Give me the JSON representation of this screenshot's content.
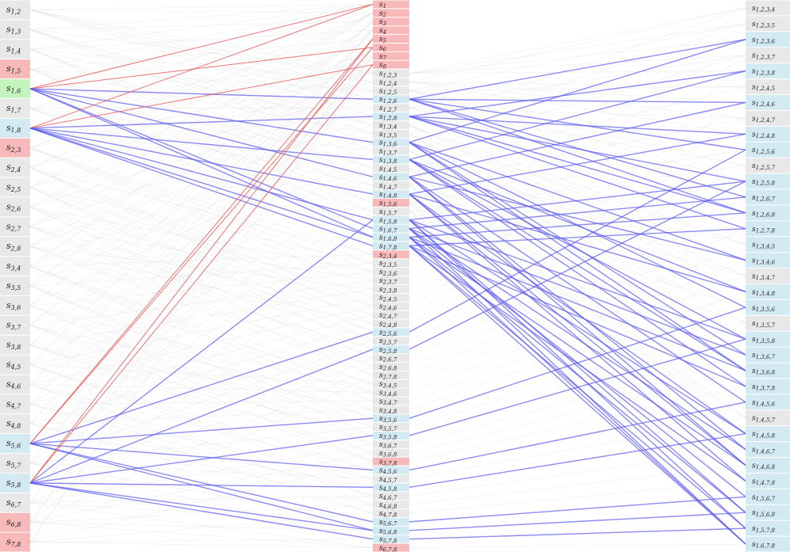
{
  "left_column": {
    "nodes": [
      {
        "label": "s",
        "subscript": "1,2",
        "color": "#e8e8e8"
      },
      {
        "label": "s",
        "subscript": "1,3",
        "color": "#e8e8e8"
      },
      {
        "label": "s",
        "subscript": "1,4",
        "color": "#e8e8e8"
      },
      {
        "label": "s",
        "subscript": "1,5",
        "color": "#f7b9b9"
      },
      {
        "label": "s",
        "subscript": "1,6",
        "color": "#c4f5bf"
      },
      {
        "label": "s",
        "subscript": "1,7",
        "color": "#e8e8e8"
      },
      {
        "label": "s",
        "subscript": "1,8",
        "color": "#d4eaf3"
      },
      {
        "label": "s",
        "subscript": "2,3",
        "color": "#f7b9b9"
      },
      {
        "label": "s",
        "subscript": "2,4",
        "color": "#e8e8e8"
      },
      {
        "label": "s",
        "subscript": "2,5",
        "color": "#e8e8e8"
      },
      {
        "label": "s",
        "subscript": "2,6",
        "color": "#e8e8e8"
      },
      {
        "label": "s",
        "subscript": "2,7",
        "color": "#e8e8e8"
      },
      {
        "label": "s",
        "subscript": "2,8",
        "color": "#e8e8e8"
      },
      {
        "label": "s",
        "subscript": "3,4",
        "color": "#e8e8e8"
      },
      {
        "label": "s",
        "subscript": "3,5",
        "color": "#e8e8e8"
      },
      {
        "label": "s",
        "subscript": "3,6",
        "color": "#e8e8e8"
      },
      {
        "label": "s",
        "subscript": "3,7",
        "color": "#e8e8e8"
      },
      {
        "label": "s",
        "subscript": "3,8",
        "color": "#e8e8e8"
      },
      {
        "label": "s",
        "subscript": "4,5",
        "color": "#e8e8e8"
      },
      {
        "label": "s",
        "subscript": "4,6",
        "color": "#e8e8e8"
      },
      {
        "label": "s",
        "subscript": "4,7",
        "color": "#e8e8e8"
      },
      {
        "label": "s",
        "subscript": "4,8",
        "color": "#e8e8e8"
      },
      {
        "label": "s",
        "subscript": "5,6",
        "color": "#d4eaf3"
      },
      {
        "label": "s",
        "subscript": "5,7",
        "color": "#e8e8e8"
      },
      {
        "label": "s",
        "subscript": "5,8",
        "color": "#d4eaf3"
      },
      {
        "label": "s",
        "subscript": "6,7",
        "color": "#e8e8e8"
      },
      {
        "label": "s",
        "subscript": "6,8",
        "color": "#f7b9b9"
      },
      {
        "label": "s",
        "subscript": "7,8",
        "color": "#f7b9b9"
      }
    ]
  },
  "middle_column": {
    "nodes": [
      {
        "label": "s",
        "subscript": "1",
        "color": "#f7b9b9"
      },
      {
        "label": "s",
        "subscript": "2",
        "color": "#f7b9b9"
      },
      {
        "label": "s",
        "subscript": "3",
        "color": "#f7b9b9"
      },
      {
        "label": "s",
        "subscript": "4",
        "color": "#f7b9b9"
      },
      {
        "label": "s",
        "subscript": "5",
        "color": "#f7b9b9"
      },
      {
        "label": "s",
        "subscript": "6",
        "color": "#f7b9b9"
      },
      {
        "label": "s",
        "subscript": "7",
        "color": "#f7b9b9"
      },
      {
        "label": "s",
        "subscript": "8",
        "color": "#f7b9b9"
      },
      {
        "label": "s",
        "subscript": "1,2,3",
        "color": "#e8e8e8"
      },
      {
        "label": "s",
        "subscript": "1,2,4",
        "color": "#e8e8e8"
      },
      {
        "label": "s",
        "subscript": "1,2,5",
        "color": "#e8e8e8"
      },
      {
        "label": "s",
        "subscript": "1,2,6",
        "color": "#d4eaf3"
      },
      {
        "label": "s",
        "subscript": "1,2,7",
        "color": "#e8e8e8"
      },
      {
        "label": "s",
        "subscript": "1,2,8",
        "color": "#d4eaf3"
      },
      {
        "label": "s",
        "subscript": "1,3,4",
        "color": "#e8e8e8"
      },
      {
        "label": "s",
        "subscript": "1,3,5",
        "color": "#e8e8e8"
      },
      {
        "label": "s",
        "subscript": "1,3,6",
        "color": "#d4eaf3"
      },
      {
        "label": "s",
        "subscript": "1,3,7",
        "color": "#e8e8e8"
      },
      {
        "label": "s",
        "subscript": "1,3,8",
        "color": "#d4eaf3"
      },
      {
        "label": "s",
        "subscript": "1,4,5",
        "color": "#e8e8e8"
      },
      {
        "label": "s",
        "subscript": "1,4,6",
        "color": "#d4eaf3"
      },
      {
        "label": "s",
        "subscript": "1,4,7",
        "color": "#e8e8e8"
      },
      {
        "label": "s",
        "subscript": "1,4,8",
        "color": "#d4eaf3"
      },
      {
        "label": "s",
        "subscript": "1,5,6",
        "color": "#f7b9b9"
      },
      {
        "label": "s",
        "subscript": "1,5,7",
        "color": "#e8e8e8"
      },
      {
        "label": "s",
        "subscript": "1,5,8",
        "color": "#d4eaf3"
      },
      {
        "label": "s",
        "subscript": "1,6,7",
        "color": "#d4eaf3"
      },
      {
        "label": "s",
        "subscript": "1,6,8",
        "color": "#d4eaf3"
      },
      {
        "label": "s",
        "subscript": "1,7,8",
        "color": "#d4eaf3"
      },
      {
        "label": "s",
        "subscript": "2,3,4",
        "color": "#f7b9b9"
      },
      {
        "label": "s",
        "subscript": "2,3,5",
        "color": "#e8e8e8"
      },
      {
        "label": "s",
        "subscript": "2,3,6",
        "color": "#e8e8e8"
      },
      {
        "label": "s",
        "subscript": "2,3,7",
        "color": "#e8e8e8"
      },
      {
        "label": "s",
        "subscript": "2,3,8",
        "color": "#e8e8e8"
      },
      {
        "label": "s",
        "subscript": "2,4,5",
        "color": "#e8e8e8"
      },
      {
        "label": "s",
        "subscript": "2,4,6",
        "color": "#e8e8e8"
      },
      {
        "label": "s",
        "subscript": "2,4,7",
        "color": "#e8e8e8"
      },
      {
        "label": "s",
        "subscript": "2,4,8",
        "color": "#e8e8e8"
      },
      {
        "label": "s",
        "subscript": "2,5,6",
        "color": "#d4eaf3"
      },
      {
        "label": "s",
        "subscript": "2,5,7",
        "color": "#e8e8e8"
      },
      {
        "label": "s",
        "subscript": "2,5,8",
        "color": "#d4eaf3"
      },
      {
        "label": "s",
        "subscript": "2,6,7",
        "color": "#e8e8e8"
      },
      {
        "label": "s",
        "subscript": "2,6,8",
        "color": "#e8e8e8"
      },
      {
        "label": "s",
        "subscript": "2,7,8",
        "color": "#e8e8e8"
      },
      {
        "label": "s",
        "subscript": "3,4,5",
        "color": "#e8e8e8"
      },
      {
        "label": "s",
        "subscript": "3,4,6",
        "color": "#e8e8e8"
      },
      {
        "label": "s",
        "subscript": "3,4,7",
        "color": "#e8e8e8"
      },
      {
        "label": "s",
        "subscript": "3,4,8",
        "color": "#e8e8e8"
      },
      {
        "label": "s",
        "subscript": "3,5,6",
        "color": "#d4eaf3"
      },
      {
        "label": "s",
        "subscript": "3,5,7",
        "color": "#e8e8e8"
      },
      {
        "label": "s",
        "subscript": "3,5,8",
        "color": "#d4eaf3"
      },
      {
        "label": "s",
        "subscript": "3,6,7",
        "color": "#e8e8e8"
      },
      {
        "label": "s",
        "subscript": "3,6,8",
        "color": "#e8e8e8"
      },
      {
        "label": "s",
        "subscript": "3,7,8",
        "color": "#f7b9b9"
      },
      {
        "label": "s",
        "subscript": "4,5,6",
        "color": "#d4eaf3"
      },
      {
        "label": "s",
        "subscript": "4,5,7",
        "color": "#e8e8e8"
      },
      {
        "label": "s",
        "subscript": "4,5,8",
        "color": "#d4eaf3"
      },
      {
        "label": "s",
        "subscript": "4,6,7",
        "color": "#e8e8e8"
      },
      {
        "label": "s",
        "subscript": "4,6,8",
        "color": "#e8e8e8"
      },
      {
        "label": "s",
        "subscript": "4,7,8",
        "color": "#e8e8e8"
      },
      {
        "label": "s",
        "subscript": "5,6,7",
        "color": "#d4eaf3"
      },
      {
        "label": "s",
        "subscript": "5,6,8",
        "color": "#d4eaf3"
      },
      {
        "label": "s",
        "subscript": "5,7,8",
        "color": "#d4eaf3"
      },
      {
        "label": "s",
        "subscript": "6,7,8",
        "color": "#f7b9b9"
      }
    ]
  },
  "right_column": {
    "nodes": [
      {
        "label": "s",
        "subscript": "1,2,3,4",
        "color": "#e8e8e8"
      },
      {
        "label": "s",
        "subscript": "1,2,3,5",
        "color": "#e8e8e8"
      },
      {
        "label": "s",
        "subscript": "1,2,3,6",
        "color": "#d4eaf3"
      },
      {
        "label": "s",
        "subscript": "1,2,3,7",
        "color": "#e8e8e8"
      },
      {
        "label": "s",
        "subscript": "1,2,3,8",
        "color": "#d4eaf3"
      },
      {
        "label": "s",
        "subscript": "1,2,4,5",
        "color": "#e8e8e8"
      },
      {
        "label": "s",
        "subscript": "1,2,4,6",
        "color": "#d4eaf3"
      },
      {
        "label": "s",
        "subscript": "1,2,4,7",
        "color": "#e8e8e8"
      },
      {
        "label": "s",
        "subscript": "1,2,4,8",
        "color": "#d4eaf3"
      },
      {
        "label": "s",
        "subscript": "1,2,5,6",
        "color": "#d4eaf3"
      },
      {
        "label": "s",
        "subscript": "1,2,5,7",
        "color": "#e8e8e8"
      },
      {
        "label": "s",
        "subscript": "1,2,5,8",
        "color": "#d4eaf3"
      },
      {
        "label": "s",
        "subscript": "1,2,6,7",
        "color": "#d4eaf3"
      },
      {
        "label": "s",
        "subscript": "1,2,6,8",
        "color": "#d4eaf3"
      },
      {
        "label": "s",
        "subscript": "1,2,7,8",
        "color": "#d4eaf3"
      },
      {
        "label": "s",
        "subscript": "1,3,4,5",
        "color": "#d4eaf3"
      },
      {
        "label": "s",
        "subscript": "1,3,4,6",
        "color": "#d4eaf3"
      },
      {
        "label": "s",
        "subscript": "1,3,4,7",
        "color": "#e8e8e8"
      },
      {
        "label": "s",
        "subscript": "1,3,4,8",
        "color": "#d4eaf3"
      },
      {
        "label": "s",
        "subscript": "1,3,5,6",
        "color": "#d4eaf3"
      },
      {
        "label": "s",
        "subscript": "1,3,5,7",
        "color": "#e8e8e8"
      },
      {
        "label": "s",
        "subscript": "1,3,5,8",
        "color": "#d4eaf3"
      },
      {
        "label": "s",
        "subscript": "1,3,6,7",
        "color": "#d4eaf3"
      },
      {
        "label": "s",
        "subscript": "1,3,6,8",
        "color": "#d4eaf3"
      },
      {
        "label": "s",
        "subscript": "1,3,7,8",
        "color": "#d4eaf3"
      },
      {
        "label": "s",
        "subscript": "1,4,5,6",
        "color": "#d4eaf3"
      },
      {
        "label": "s",
        "subscript": "1,4,5,7",
        "color": "#e8e8e8"
      },
      {
        "label": "s",
        "subscript": "1,4,5,8",
        "color": "#d4eaf3"
      },
      {
        "label": "s",
        "subscript": "1,4,6,7",
        "color": "#d4eaf3"
      },
      {
        "label": "s",
        "subscript": "1,4,6,8",
        "color": "#d4eaf3"
      },
      {
        "label": "s",
        "subscript": "1,4,7,8",
        "color": "#d4eaf3"
      },
      {
        "label": "s",
        "subscript": "1,5,6,7",
        "color": "#d4eaf3"
      },
      {
        "label": "s",
        "subscript": "1,5,6,8",
        "color": "#d4eaf3"
      },
      {
        "label": "s",
        "subscript": "1,5,7,8",
        "color": "#d4eaf3"
      },
      {
        "label": "s",
        "subscript": "1,6,7,8",
        "color": "#d4eaf3"
      }
    ]
  }
}
